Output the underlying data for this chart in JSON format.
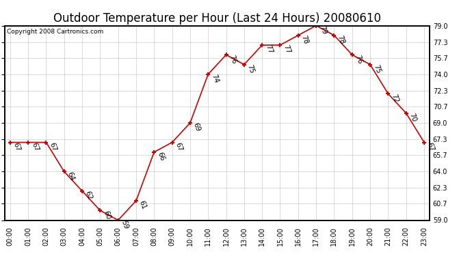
{
  "title": "Outdoor Temperature per Hour (Last 24 Hours) 20080610",
  "copyright": "Copyright 2008 Cartronics.com",
  "hours": [
    "00:00",
    "01:00",
    "02:00",
    "03:00",
    "04:00",
    "05:00",
    "06:00",
    "07:00",
    "08:00",
    "09:00",
    "10:00",
    "11:00",
    "12:00",
    "13:00",
    "14:00",
    "15:00",
    "16:00",
    "17:00",
    "18:00",
    "19:00",
    "20:00",
    "21:00",
    "22:00",
    "23:00"
  ],
  "temps": [
    67,
    67,
    67,
    64,
    62,
    60,
    59,
    61,
    66,
    67,
    69,
    74,
    76,
    75,
    77,
    77,
    78,
    79,
    78,
    76,
    75,
    72,
    70,
    67
  ],
  "line_color": "#cc0000",
  "marker": "+",
  "marker_size": 5,
  "marker_linewidth": 1.5,
  "ylim_min": 59.0,
  "ylim_max": 79.0,
  "ytick_labels": [
    "59.0",
    "60.7",
    "62.3",
    "64.0",
    "65.7",
    "67.3",
    "69.0",
    "70.7",
    "72.3",
    "74.0",
    "75.7",
    "77.3",
    "79.0"
  ],
  "ytick_values": [
    59.0,
    60.7,
    62.3,
    64.0,
    65.7,
    67.3,
    69.0,
    70.7,
    72.3,
    74.0,
    75.7,
    77.3,
    79.0
  ],
  "bg_color": "#ffffff",
  "grid_color": "#cccccc",
  "title_fontsize": 12,
  "tick_fontsize": 7,
  "label_fontsize": 7.5,
  "copyright_fontsize": 6.5
}
